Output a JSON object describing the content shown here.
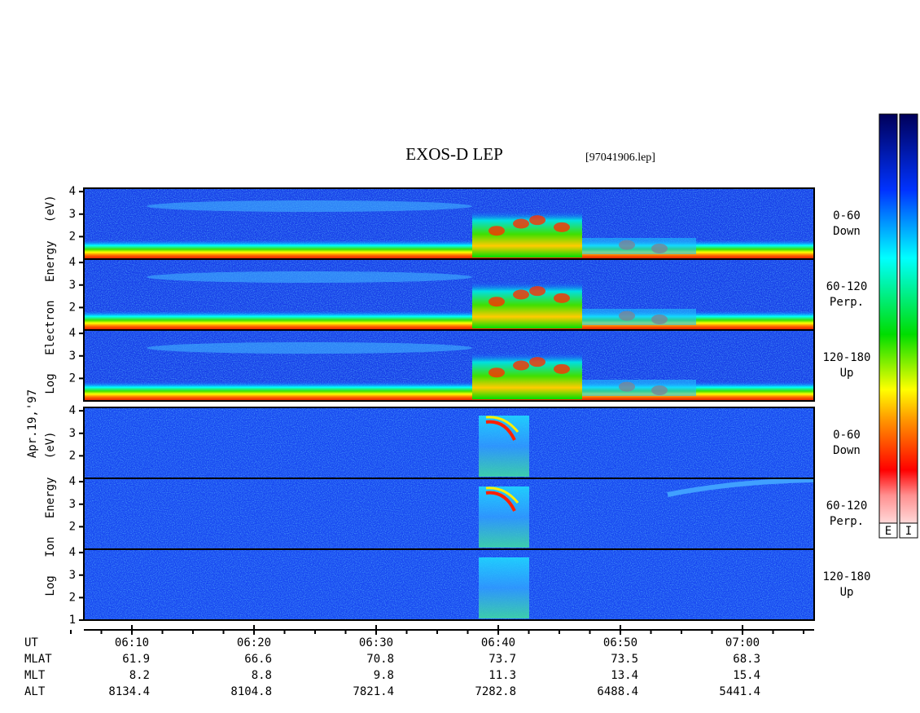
{
  "title": "EXOS-D LEP",
  "file": "[97041906.lep]",
  "date": "Apr.19,'97",
  "groups": [
    {
      "axis_label": "Log Electron Energy (eV)",
      "ylim": [
        1,
        4.15
      ],
      "panels": [
        {
          "label": [
            "0-60",
            "Down"
          ],
          "yticks": [
            2,
            3,
            4
          ]
        },
        {
          "label": [
            "60-120",
            "Perp."
          ],
          "yticks": [
            2,
            3,
            4
          ]
        },
        {
          "label": [
            "120-180",
            "Up"
          ],
          "yticks": [
            2,
            3,
            4
          ]
        }
      ]
    },
    {
      "axis_label": "Log Ion Energy (eV)",
      "ylim": [
        1,
        4.15
      ],
      "panels": [
        {
          "label": [
            "0-60",
            "Down"
          ],
          "yticks": [
            2,
            3,
            4
          ]
        },
        {
          "label": [
            "60-120",
            "Perp."
          ],
          "yticks": [
            2,
            3,
            4
          ]
        },
        {
          "label": [
            "120-180",
            "Up"
          ],
          "yticks": [
            1,
            2,
            3,
            4
          ]
        }
      ]
    }
  ],
  "footer": {
    "rows": [
      {
        "name": "UT",
        "values": [
          "06:10",
          "06:20",
          "06:30",
          "06:40",
          "06:50",
          "07:00"
        ]
      },
      {
        "name": "MLAT",
        "values": [
          61.9,
          66.6,
          70.8,
          73.7,
          73.5,
          68.3
        ]
      },
      {
        "name": "MLT",
        "values": [
          8.2,
          8.8,
          9.8,
          11.3,
          13.4,
          15.4
        ]
      },
      {
        "name": "ALT",
        "values": [
          8134.4,
          8104.8,
          7821.4,
          7282.8,
          6488.4,
          5441.4
        ]
      }
    ]
  },
  "colorbars": [
    "E",
    "I"
  ]
}
